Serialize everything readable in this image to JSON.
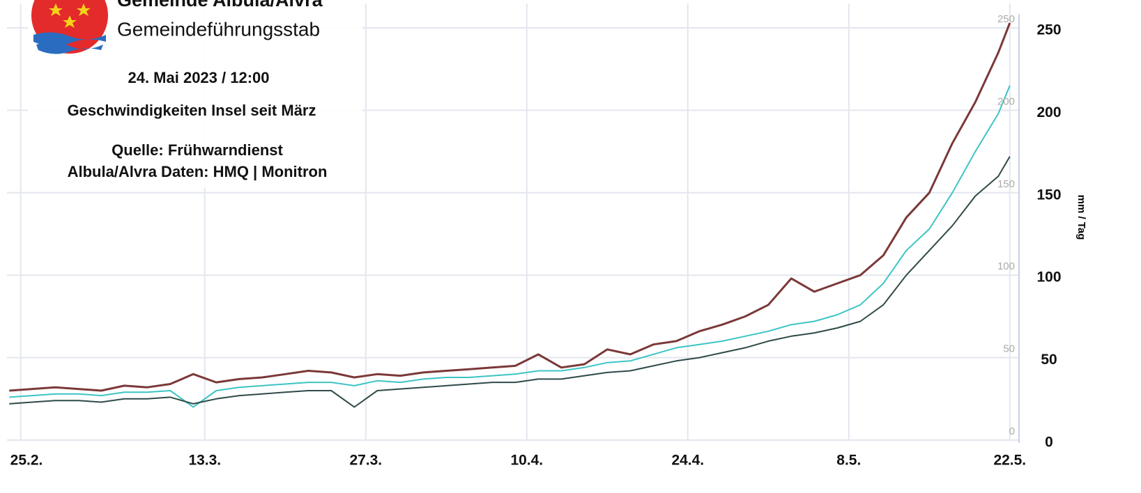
{
  "header": {
    "org": "Gemeinde Albula/Alvra",
    "unit": "Gemeindeführungsstab",
    "date": "24. Mai 2023 / 12:00",
    "subject": "Geschwindigkeiten Insel seit März",
    "source": [
      "Quelle: Frühwarndienst",
      "Albula/Alvra Daten: HMQ | Monitron"
    ]
  },
  "chart_data": {
    "type": "line",
    "y_label": "mm / Tag",
    "x": [
      -1,
      1,
      3,
      5,
      7,
      9,
      11,
      13,
      15,
      17,
      19,
      21,
      23,
      25,
      27,
      29,
      31,
      33,
      35,
      37,
      39,
      41,
      43,
      45,
      47,
      49,
      51,
      53,
      55,
      57,
      59,
      61,
      63,
      65,
      67,
      69,
      71,
      73,
      75,
      77,
      79,
      81,
      83,
      85,
      86
    ],
    "series": [
      {
        "color": "#7b3838",
        "values": [
          30,
          31,
          32,
          31,
          30,
          33,
          32,
          34,
          40,
          35,
          37,
          38,
          40,
          42,
          41,
          38,
          40,
          39,
          41,
          42,
          43,
          44,
          45,
          52,
          44,
          46,
          55,
          52,
          58,
          60,
          66,
          70,
          75,
          82,
          98,
          90,
          95,
          100,
          112,
          135,
          150,
          180,
          205,
          235,
          253
        ]
      },
      {
        "color": "#3cc4c4",
        "values": [
          26,
          27,
          28,
          28,
          27,
          29,
          29,
          30,
          20,
          30,
          32,
          33,
          34,
          35,
          35,
          33,
          36,
          35,
          37,
          38,
          38,
          39,
          40,
          42,
          42,
          44,
          47,
          48,
          52,
          56,
          58,
          60,
          63,
          66,
          70,
          72,
          76,
          82,
          95,
          115,
          128,
          150,
          175,
          198,
          215
        ]
      },
      {
        "color": "#2e4a48",
        "values": [
          22,
          23,
          24,
          24,
          23,
          25,
          25,
          26,
          22,
          25,
          27,
          28,
          29,
          30,
          30,
          20,
          30,
          31,
          32,
          33,
          34,
          35,
          35,
          37,
          37,
          39,
          41,
          42,
          45,
          48,
          50,
          53,
          56,
          60,
          63,
          65,
          68,
          72,
          82,
          100,
          115,
          130,
          148,
          160,
          172
        ]
      }
    ],
    "xlim": [
      -1.2,
      86.8
    ],
    "xticks": [
      {
        "value": 0,
        "label": "25.2."
      },
      {
        "value": 16,
        "label": "13.3."
      },
      {
        "value": 30,
        "label": "27.3."
      },
      {
        "value": 44,
        "label": "10.4."
      },
      {
        "value": 58,
        "label": "24.4."
      },
      {
        "value": 72,
        "label": "8.5."
      },
      {
        "value": 86,
        "label": "22.5."
      }
    ],
    "ylim": [
      0,
      250
    ],
    "yticks": [
      0,
      50,
      100,
      150,
      200,
      250
    ],
    "grid": true
  }
}
